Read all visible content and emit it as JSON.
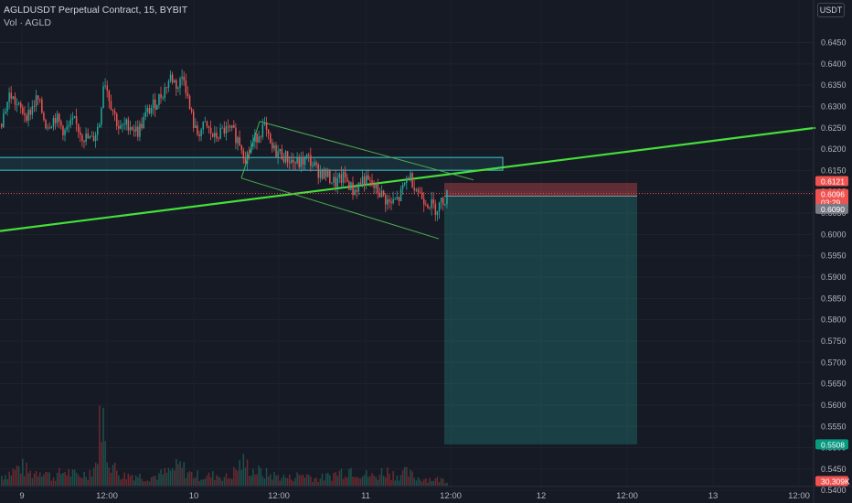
{
  "header": {
    "symbol_line": "AGLDUSDT Perpetual Contract, 15, BYBIT",
    "volume_line": "Vol · AGLD",
    "currency": "USDT"
  },
  "colors": {
    "background": "#161a25",
    "up": "#26a69a",
    "down": "#ef5350",
    "trendline": "#45e03a",
    "rectangle": "#3cc6cf",
    "channel": "#4caf50"
  },
  "chart_data": {
    "type": "candlestick",
    "symbol": "AGLDUSDT",
    "interval": "15",
    "exchange": "BYBIT",
    "ylim": [
      0.537,
      0.647
    ],
    "y_ticks": [
      0.645,
      0.64,
      0.635,
      0.63,
      0.625,
      0.62,
      0.615,
      0.61,
      0.605,
      0.6,
      0.595,
      0.59,
      0.585,
      0.58,
      0.575,
      0.57,
      0.565,
      0.56,
      0.555,
      0.55,
      0.545,
      0.54
    ],
    "x_ticks": [
      "9",
      "12:00",
      "10",
      "12:00",
      "11",
      "12:00",
      "12",
      "12:00",
      "13",
      "12:00"
    ],
    "price_path": [
      [
        0,
        0.626
      ],
      [
        10,
        0.633
      ],
      [
        20,
        0.6295
      ],
      [
        30,
        0.628
      ],
      [
        40,
        0.632
      ],
      [
        50,
        0.6255
      ],
      [
        60,
        0.6275
      ],
      [
        70,
        0.624
      ],
      [
        80,
        0.6265
      ],
      [
        90,
        0.623
      ],
      [
        100,
        0.622
      ],
      [
        108,
        0.626
      ],
      [
        113,
        0.637
      ],
      [
        120,
        0.631
      ],
      [
        130,
        0.6245
      ],
      [
        140,
        0.626
      ],
      [
        150,
        0.624
      ],
      [
        160,
        0.6285
      ],
      [
        170,
        0.631
      ],
      [
        178,
        0.6335
      ],
      [
        186,
        0.637
      ],
      [
        194,
        0.6345
      ],
      [
        200,
        0.638
      ],
      [
        206,
        0.63
      ],
      [
        214,
        0.6235
      ],
      [
        224,
        0.6255
      ],
      [
        234,
        0.6225
      ],
      [
        244,
        0.6245
      ],
      [
        254,
        0.624
      ],
      [
        262,
        0.6215
      ],
      [
        268,
        0.618
      ],
      [
        274,
        0.6205
      ],
      [
        280,
        0.623
      ],
      [
        288,
        0.6255
      ],
      [
        296,
        0.62
      ],
      [
        306,
        0.619
      ],
      [
        316,
        0.6175
      ],
      [
        326,
        0.6165
      ],
      [
        336,
        0.618
      ],
      [
        346,
        0.615
      ],
      [
        356,
        0.614
      ],
      [
        366,
        0.612
      ],
      [
        376,
        0.6135
      ],
      [
        386,
        0.61
      ],
      [
        396,
        0.613
      ],
      [
        406,
        0.6115
      ],
      [
        416,
        0.6095
      ],
      [
        426,
        0.607
      ],
      [
        436,
        0.6085
      ],
      [
        446,
        0.614
      ],
      [
        452,
        0.612
      ],
      [
        460,
        0.609
      ],
      [
        468,
        0.6075
      ],
      [
        476,
        0.606
      ],
      [
        484,
        0.608
      ],
      [
        490,
        0.6096
      ]
    ],
    "volume_path": [
      [
        0,
        0.1
      ],
      [
        12,
        0.14
      ],
      [
        22,
        0.2
      ],
      [
        34,
        0.12
      ],
      [
        46,
        0.18
      ],
      [
        56,
        0.08
      ],
      [
        70,
        0.15
      ],
      [
        84,
        0.1
      ],
      [
        96,
        0.13
      ],
      [
        104,
        0.22
      ],
      [
        108,
        0.55
      ],
      [
        110,
        1.0
      ],
      [
        114,
        0.4
      ],
      [
        124,
        0.18
      ],
      [
        134,
        0.1
      ],
      [
        146,
        0.12
      ],
      [
        158,
        0.08
      ],
      [
        170,
        0.1
      ],
      [
        184,
        0.14
      ],
      [
        196,
        0.2
      ],
      [
        208,
        0.12
      ],
      [
        222,
        0.09
      ],
      [
        236,
        0.11
      ],
      [
        250,
        0.08
      ],
      [
        264,
        0.24
      ],
      [
        276,
        0.16
      ],
      [
        290,
        0.12
      ],
      [
        302,
        0.1
      ],
      [
        316,
        0.08
      ],
      [
        332,
        0.12
      ],
      [
        346,
        0.07
      ],
      [
        360,
        0.1
      ],
      [
        374,
        0.15
      ],
      [
        384,
        0.18
      ],
      [
        396,
        0.12
      ],
      [
        410,
        0.09
      ],
      [
        420,
        0.16
      ],
      [
        432,
        0.11
      ],
      [
        444,
        0.13
      ],
      [
        456,
        0.08
      ],
      [
        470,
        0.07
      ],
      [
        484,
        0.06
      ],
      [
        490,
        0.03
      ]
    ],
    "last_price": "0.6096",
    "countdown": "03:29",
    "volume_label": "30.309K",
    "position": {
      "type": "short",
      "entry_label": "0.6090",
      "stop_label": "0.6121",
      "target_label": "0.5508",
      "entry": 0.609,
      "stop": 0.6121,
      "target": 0.5508
    },
    "drawings": {
      "support_rectangle": {
        "from_price": 0.6155,
        "to_price": 0.6172
      },
      "trendline": {
        "from_price": 0.6008,
        "to_price": 0.625
      },
      "channel_upper": {
        "from_price": 0.6265,
        "to_price": 0.6128
      },
      "channel_lower": {
        "from_price": 0.6132,
        "to_price": 0.599
      }
    }
  }
}
